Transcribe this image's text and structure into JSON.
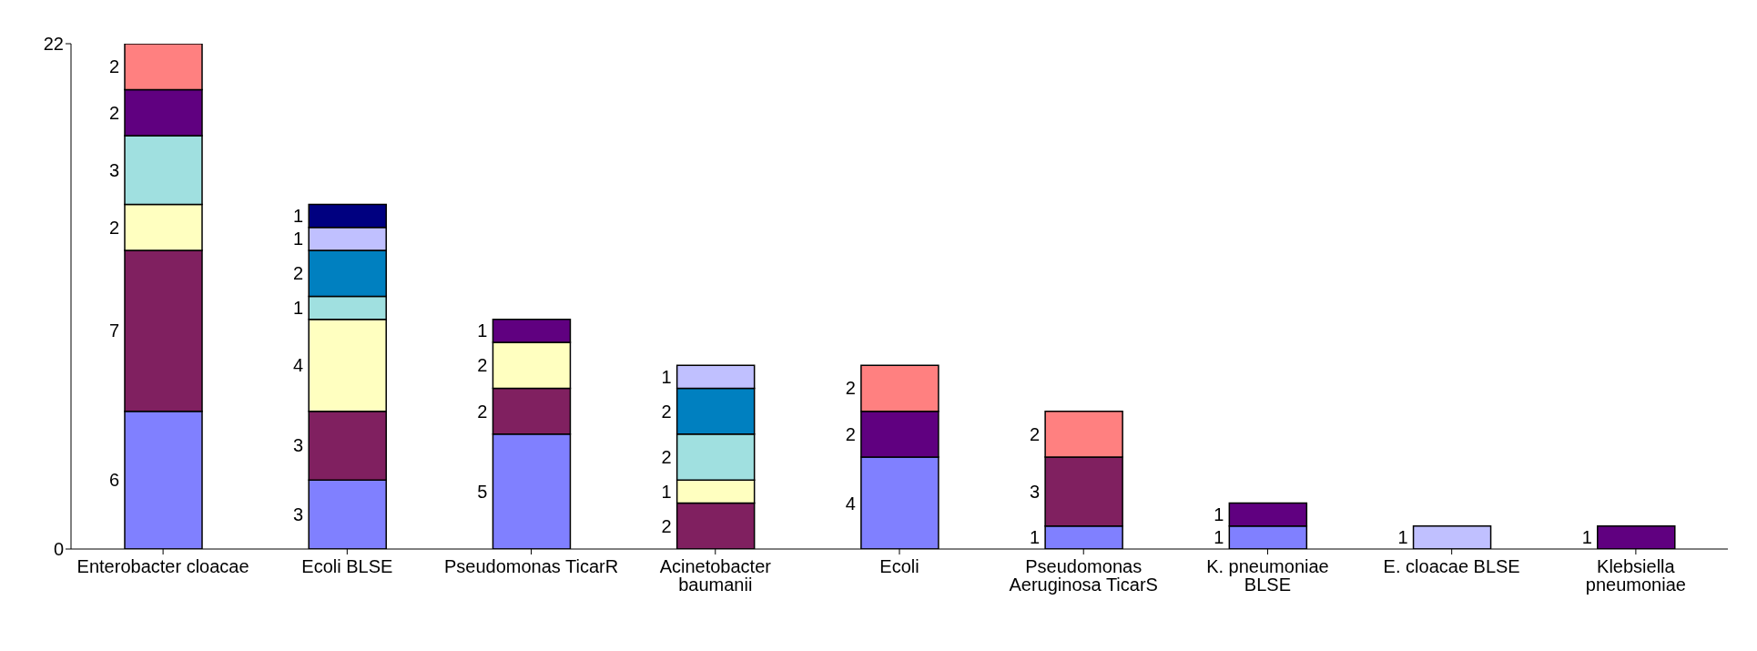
{
  "chart_data": {
    "type": "bar",
    "stacked": true,
    "categories": [
      "Enterobacter cloacae",
      "Ecoli BLSE",
      "Pseudomonas TicarR",
      "Acinetobacter baumanii",
      "Ecoli",
      "Pseudomonas Aeruginosa TicarS",
      "K. pneumoniae BLSE",
      "E. cloacae BLSE",
      "Klebsiella pneumoniae"
    ],
    "series": [
      {
        "color": "#8080ff",
        "values": [
          6,
          3,
          5,
          null,
          4,
          1,
          1,
          null,
          null
        ]
      },
      {
        "color": "#802060",
        "values": [
          7,
          3,
          2,
          2,
          null,
          3,
          null,
          null,
          null
        ]
      },
      {
        "color": "#ffffc0",
        "values": [
          2,
          4,
          2,
          1,
          null,
          null,
          null,
          null,
          null
        ]
      },
      {
        "color": "#a0e0e0",
        "values": [
          3,
          1,
          null,
          2,
          null,
          null,
          null,
          null,
          null
        ]
      },
      {
        "color": "#600080",
        "values": [
          2,
          null,
          1,
          null,
          2,
          null,
          1,
          null,
          1
        ]
      },
      {
        "color": "#ff8080",
        "values": [
          2,
          null,
          null,
          null,
          2,
          2,
          null,
          null,
          null
        ]
      },
      {
        "color": "#0080c0",
        "values": [
          null,
          2,
          null,
          2,
          null,
          null,
          null,
          null,
          null
        ]
      },
      {
        "color": "#c0c0ff",
        "values": [
          null,
          1,
          null,
          1,
          null,
          null,
          null,
          1,
          null
        ]
      },
      {
        "color": "#000080",
        "values": [
          null,
          1,
          null,
          null,
          null,
          null,
          null,
          null,
          null
        ]
      }
    ],
    "ylim": [
      0,
      22
    ],
    "yticks": [
      0,
      22
    ],
    "grid": false,
    "legend": false,
    "data_labels": true
  }
}
